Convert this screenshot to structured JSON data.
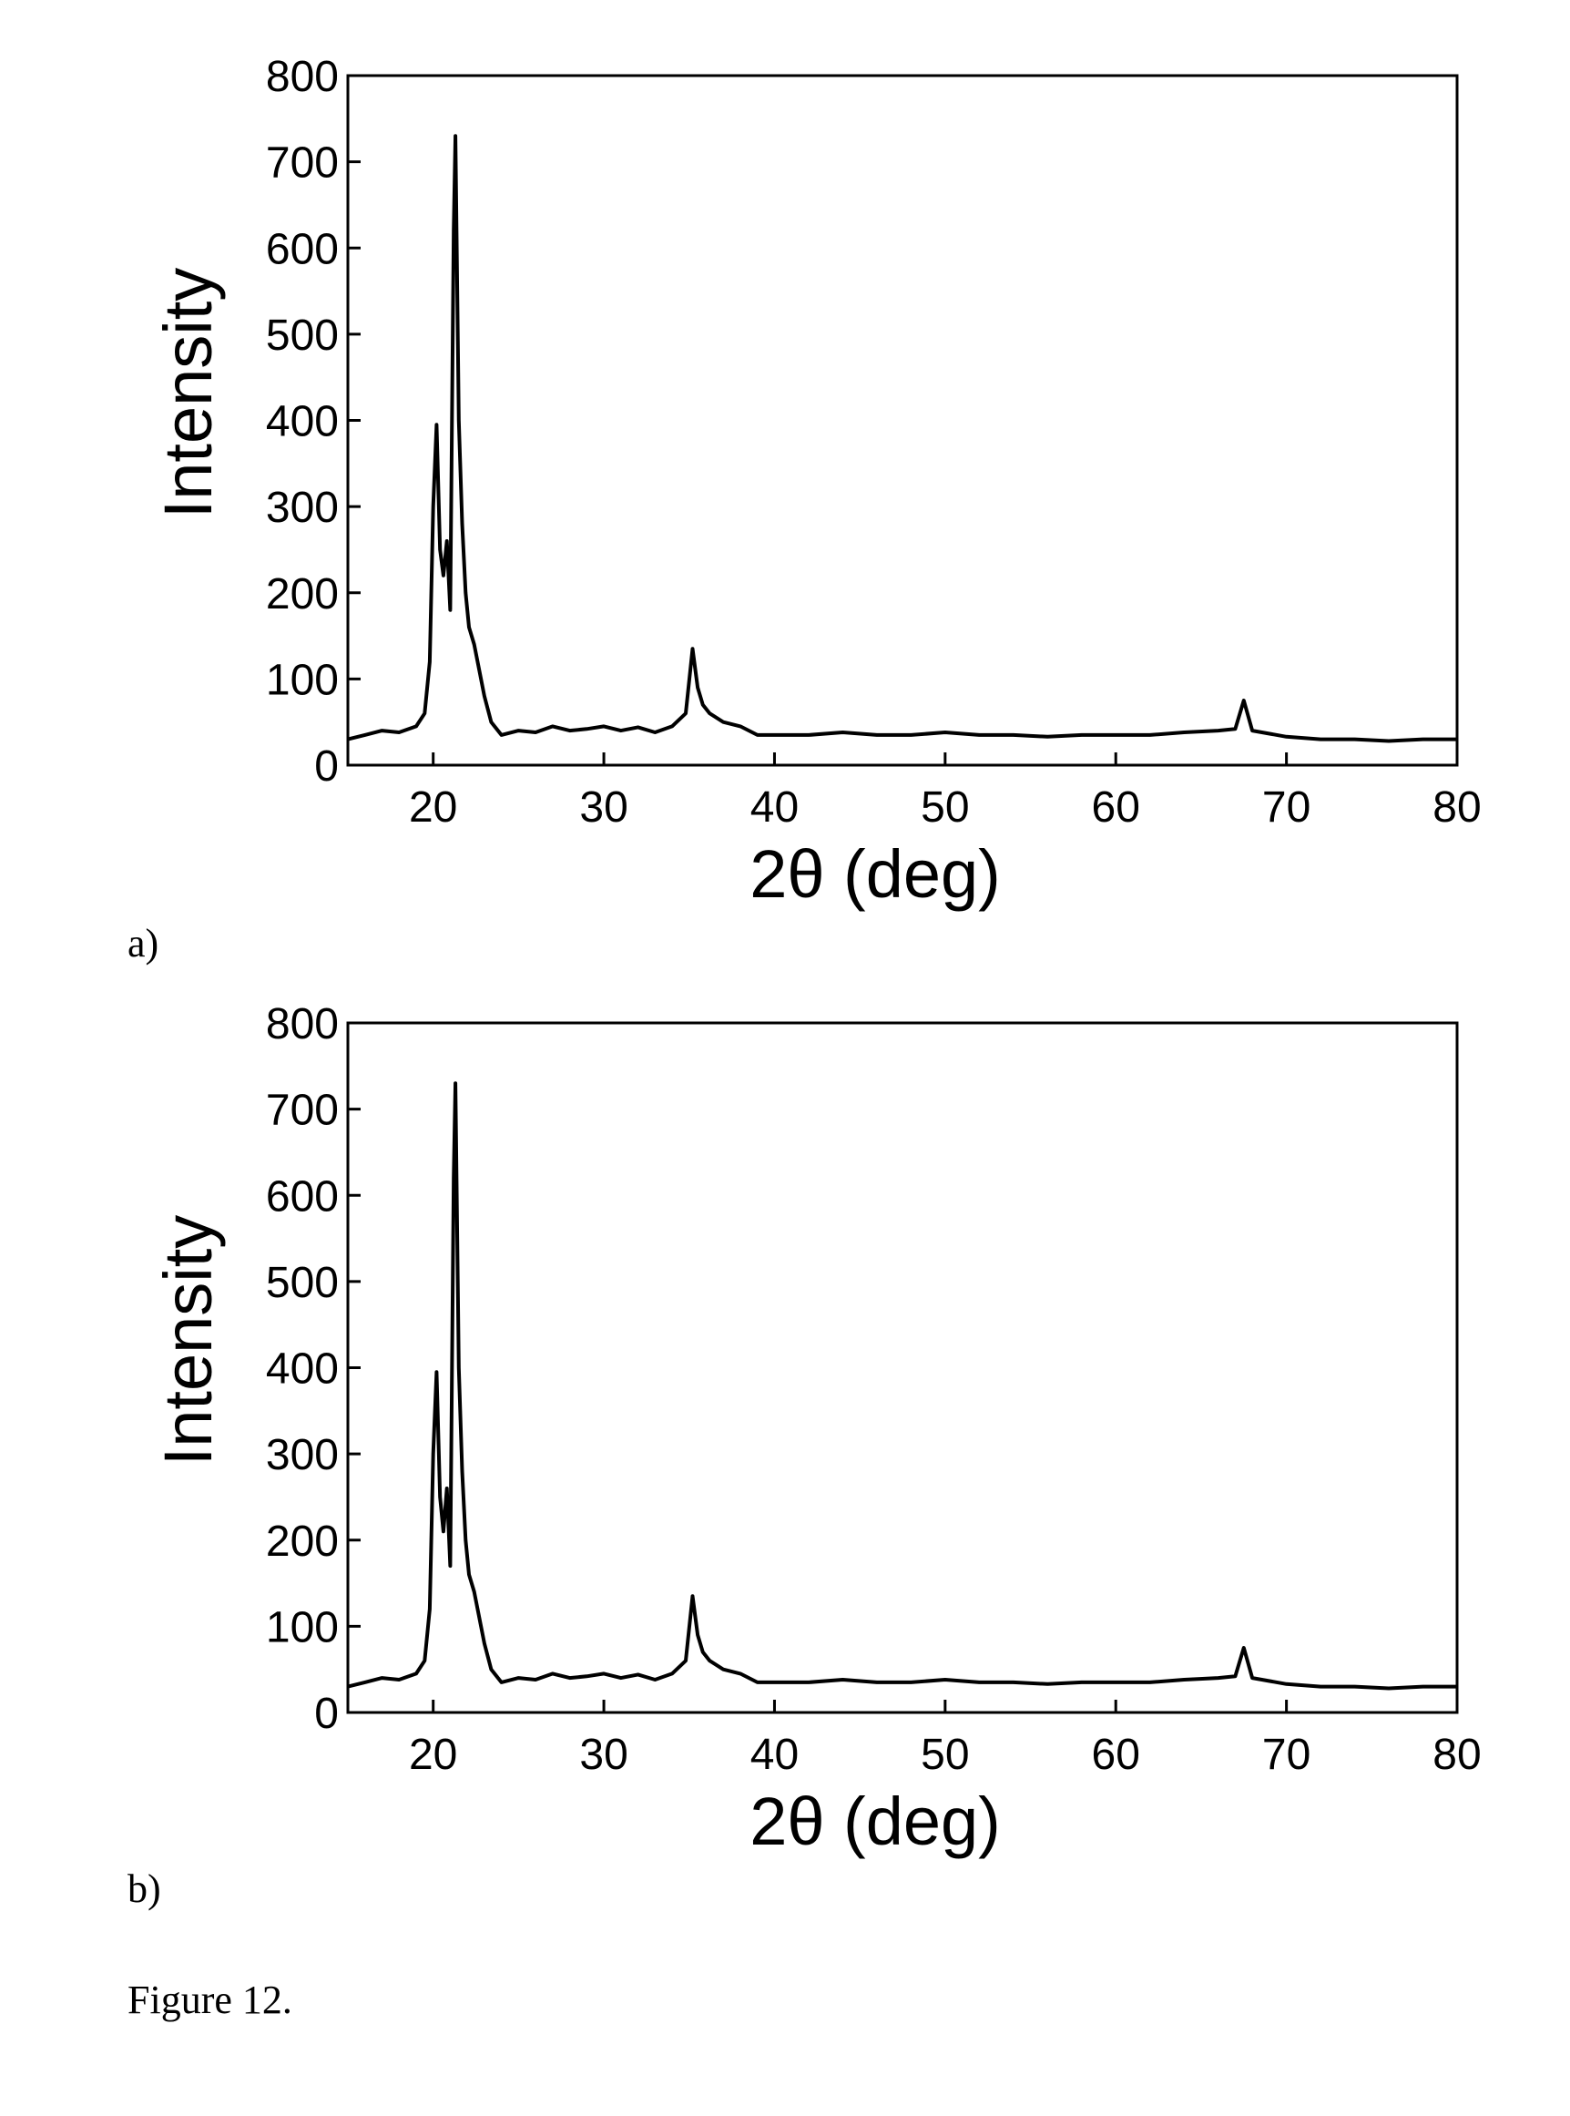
{
  "figure": {
    "caption": "Figure 12."
  },
  "chart_data": [
    {
      "type": "line",
      "panel_label": "a)",
      "title": "",
      "xlabel": "2θ (deg)",
      "ylabel": "Intensity",
      "xlim": [
        15,
        80
      ],
      "ylim": [
        0,
        800
      ],
      "xticks": [
        20,
        30,
        40,
        50,
        60,
        70,
        80
      ],
      "yticks": [
        0,
        100,
        200,
        300,
        400,
        500,
        600,
        700,
        800
      ],
      "grid": false,
      "legend": "none",
      "line_color": "#000000",
      "series": [
        {
          "name": "",
          "x": [
            15,
            16,
            17,
            18,
            19,
            19.5,
            19.8,
            20,
            20.2,
            20.4,
            20.6,
            20.8,
            21,
            21.2,
            21.3,
            21.5,
            21.7,
            21.9,
            22.1,
            22.4,
            22.7,
            23,
            23.4,
            24,
            25,
            26,
            27,
            28,
            29,
            30,
            31,
            32,
            33,
            34,
            34.8,
            35.2,
            35.5,
            35.8,
            36.2,
            37,
            38,
            39,
            40,
            42,
            44,
            46,
            48,
            50,
            52,
            54,
            56,
            58,
            60,
            62,
            64,
            66,
            67,
            67.5,
            68,
            70,
            72,
            74,
            76,
            78,
            80
          ],
          "y": [
            30,
            35,
            40,
            38,
            45,
            60,
            120,
            300,
            395,
            250,
            220,
            260,
            180,
            620,
            730,
            400,
            280,
            200,
            160,
            140,
            110,
            80,
            50,
            35,
            40,
            38,
            45,
            40,
            42,
            45,
            40,
            44,
            38,
            45,
            60,
            135,
            90,
            70,
            60,
            50,
            45,
            35,
            35,
            35,
            38,
            35,
            35,
            38,
            35,
            35,
            33,
            35,
            35,
            35,
            38,
            40,
            42,
            75,
            40,
            33,
            30,
            30,
            28,
            30,
            30
          ]
        }
      ]
    },
    {
      "type": "line",
      "panel_label": "b)",
      "title": "",
      "xlabel": "2θ (deg)",
      "ylabel": "Intensity",
      "xlim": [
        15,
        80
      ],
      "ylim": [
        0,
        800
      ],
      "xticks": [
        20,
        30,
        40,
        50,
        60,
        70,
        80
      ],
      "yticks": [
        0,
        100,
        200,
        300,
        400,
        500,
        600,
        700,
        800
      ],
      "grid": false,
      "legend": "none",
      "line_color": "#000000",
      "series": [
        {
          "name": "",
          "x": [
            15,
            16,
            17,
            18,
            19,
            19.5,
            19.8,
            20,
            20.2,
            20.4,
            20.6,
            20.8,
            21,
            21.2,
            21.3,
            21.5,
            21.7,
            21.9,
            22.1,
            22.4,
            22.7,
            23,
            23.4,
            24,
            25,
            26,
            27,
            28,
            29,
            30,
            31,
            32,
            33,
            34,
            34.8,
            35.2,
            35.5,
            35.8,
            36.2,
            37,
            38,
            39,
            40,
            42,
            44,
            46,
            48,
            50,
            52,
            54,
            56,
            58,
            60,
            62,
            64,
            66,
            67,
            67.5,
            68,
            70,
            72,
            74,
            76,
            78,
            80
          ],
          "y": [
            30,
            35,
            40,
            38,
            45,
            60,
            120,
            300,
            395,
            250,
            210,
            260,
            170,
            620,
            730,
            400,
            280,
            200,
            160,
            140,
            110,
            80,
            50,
            35,
            40,
            38,
            45,
            40,
            42,
            45,
            40,
            44,
            38,
            45,
            60,
            135,
            90,
            70,
            60,
            50,
            45,
            35,
            35,
            35,
            38,
            35,
            35,
            38,
            35,
            35,
            33,
            35,
            35,
            35,
            38,
            40,
            42,
            75,
            40,
            33,
            30,
            30,
            28,
            30,
            30
          ]
        }
      ]
    }
  ]
}
